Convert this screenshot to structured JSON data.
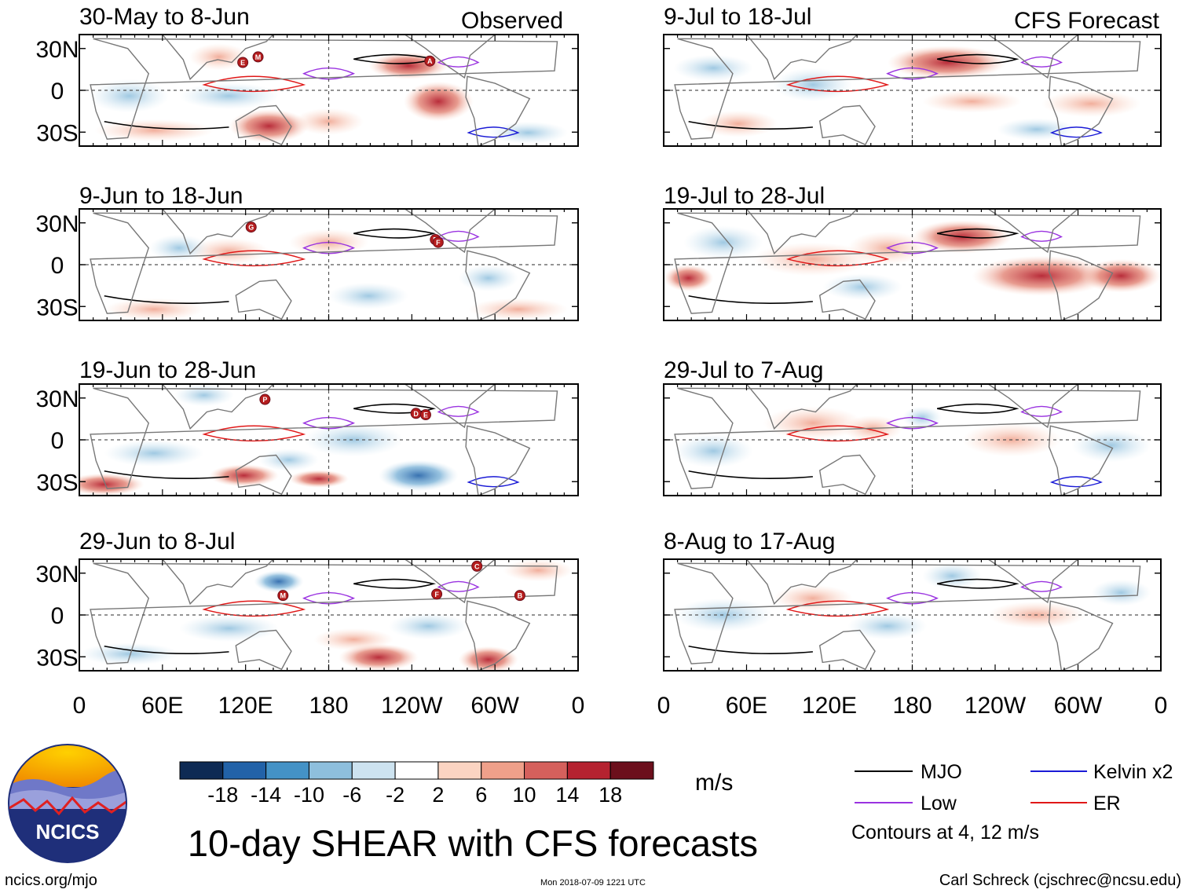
{
  "chart_data": {
    "type": "heatmap",
    "title": "10-day SHEAR with CFS forecasts",
    "units": "m/s",
    "headers": {
      "left": "Observed",
      "right": "CFS Forecast"
    },
    "panels": [
      {
        "id": "p1",
        "column": "observed",
        "period": "30-May to 8-Jun",
        "storms": [
          {
            "label": "E",
            "lon": 118,
            "lat": 20
          },
          {
            "label": "M",
            "lon": 129,
            "lat": 24
          },
          {
            "label": "A",
            "lon": 253,
            "lat": 21
          }
        ]
      },
      {
        "id": "p2",
        "column": "observed",
        "period": "9-Jun to 18-Jun",
        "storms": [
          {
            "label": "G",
            "lon": 124,
            "lat": 27
          },
          {
            "label": "E",
            "lon": 257,
            "lat": 18
          },
          {
            "label": "F",
            "lon": 259,
            "lat": 16
          }
        ]
      },
      {
        "id": "p3",
        "column": "observed",
        "period": "19-Jun to 28-Jun",
        "storms": [
          {
            "label": "P",
            "lon": 134,
            "lat": 29
          },
          {
            "label": "D",
            "lon": 243,
            "lat": 19
          },
          {
            "label": "E",
            "lon": 250,
            "lat": 18
          }
        ]
      },
      {
        "id": "p4",
        "column": "observed",
        "period": "29-Jun to 8-Jul",
        "storms": [
          {
            "label": "C",
            "lon": 287,
            "lat": 35
          },
          {
            "label": "M",
            "lon": 147,
            "lat": 14
          },
          {
            "label": "F",
            "lon": 258,
            "lat": 15
          },
          {
            "label": "B",
            "lon": 318,
            "lat": 14
          }
        ]
      },
      {
        "id": "p5",
        "column": "forecast",
        "period": "9-Jul to 18-Jul",
        "storms": []
      },
      {
        "id": "p6",
        "column": "forecast",
        "period": "19-Jul to 28-Jul",
        "storms": []
      },
      {
        "id": "p7",
        "column": "forecast",
        "period": "29-Jul to 7-Aug",
        "storms": []
      },
      {
        "id": "p8",
        "column": "forecast",
        "period": "8-Aug to 17-Aug",
        "storms": []
      }
    ],
    "lat_ticks": [
      "30N",
      "0",
      "30S"
    ],
    "lat_values": [
      30,
      0,
      -30
    ],
    "ylim": [
      -40,
      40
    ],
    "lon_ticks": [
      "0",
      "60E",
      "120E",
      "180",
      "120W",
      "60W",
      "0"
    ],
    "lon_values": [
      0,
      60,
      120,
      180,
      240,
      300,
      360
    ],
    "xlim": [
      0,
      360
    ],
    "colorbar": {
      "levels": [
        "-18",
        "-14",
        "-10",
        "-6",
        "-2",
        "2",
        "6",
        "10",
        "14",
        "18"
      ],
      "colors": [
        "#0e2a54",
        "#2262a8",
        "#4492c6",
        "#8ebfdd",
        "#cde3f0",
        "#ffffff",
        "#fbd4c2",
        "#efa08a",
        "#d5605c",
        "#b52230",
        "#6c0f1c"
      ]
    },
    "legend": [
      {
        "label": "MJO",
        "color": "#000000"
      },
      {
        "label": "Kelvin x2",
        "color": "#1a1ad6"
      },
      {
        "label": "Low",
        "color": "#9a33e0"
      },
      {
        "label": "ER",
        "color": "#e01818"
      }
    ],
    "contour_note": "Contours at 4, 12 m/s"
  },
  "footer": {
    "left": "ncics.org/mjo",
    "center": "Mon 2018-07-09 1221 UTC",
    "right": "Carl Schreck (cjschrec@ncsu.edu)"
  },
  "logo": {
    "text": "NCICS"
  }
}
